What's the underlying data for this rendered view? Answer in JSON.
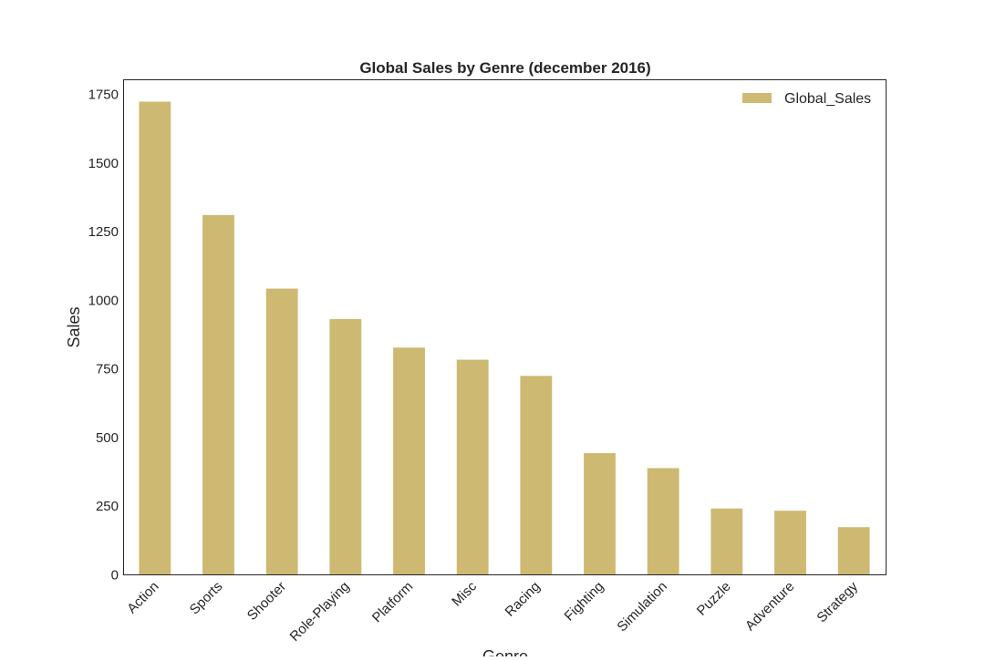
{
  "chart_data": {
    "type": "bar",
    "title": "Global Sales by Genre (december 2016)",
    "xlabel": "Genre",
    "ylabel": "Sales",
    "categories": [
      "Action",
      "Sports",
      "Shooter",
      "Role-Playing",
      "Platform",
      "Misc",
      "Racing",
      "Fighting",
      "Simulation",
      "Puzzle",
      "Adventure",
      "Strategy"
    ],
    "series": [
      {
        "name": "Global_Sales",
        "color": "#cdb972",
        "values": [
          1722,
          1309,
          1041,
          930,
          826,
          782,
          723,
          442,
          387,
          240,
          232,
          172
        ]
      }
    ],
    "ylim": [
      0,
      1800
    ],
    "yticks": [
      0,
      250,
      500,
      750,
      1000,
      1250,
      1500,
      1750
    ],
    "grid": false,
    "legend_position": "top-right"
  }
}
